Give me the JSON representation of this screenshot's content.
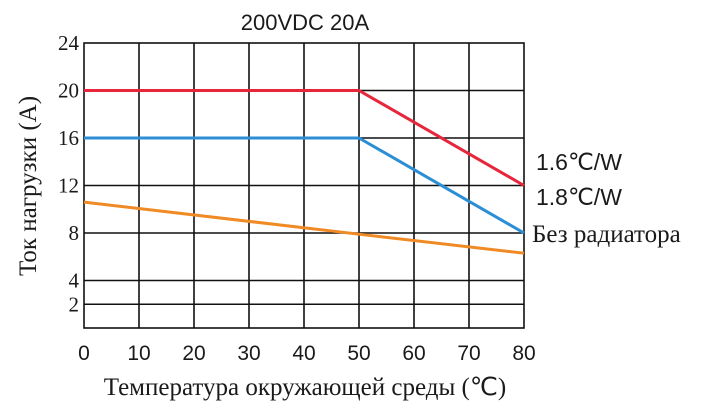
{
  "chart_data": {
    "type": "line",
    "title": "200VDC 20A",
    "xlabel": "Температура окружающей среды (℃)",
    "ylabel": "Ток нагрузки (A)",
    "xlim": [
      0,
      80
    ],
    "ylim": [
      0,
      24
    ],
    "xticks": [
      0,
      10,
      20,
      30,
      40,
      50,
      60,
      70,
      80
    ],
    "yticks": [
      2,
      4,
      8,
      12,
      16,
      20,
      24
    ],
    "grid": true,
    "series": [
      {
        "name": "1.6℃/W",
        "color": "#e8263b",
        "x": [
          0,
          50,
          80
        ],
        "y": [
          20,
          20,
          12
        ]
      },
      {
        "name": "1.8℃/W",
        "color": "#2c8fd6",
        "x": [
          0,
          50,
          80
        ],
        "y": [
          16,
          16,
          8
        ]
      },
      {
        "name": "Без радиатора",
        "color": "#f08a24",
        "x": [
          0,
          50,
          80
        ],
        "y": [
          10.6,
          7.9,
          6.3
        ]
      }
    ]
  }
}
